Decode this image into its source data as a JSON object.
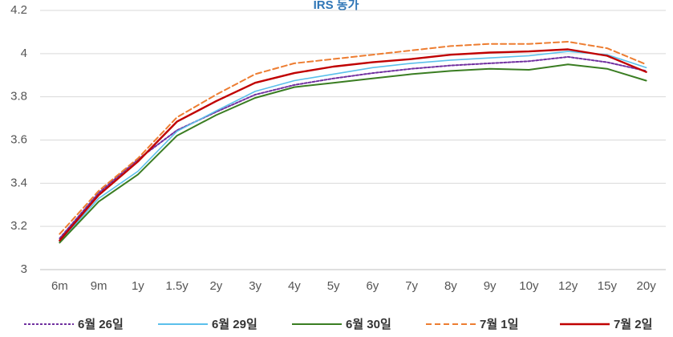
{
  "chart_data": {
    "type": "line",
    "title": "IRS 동가",
    "xlabel": "",
    "ylabel": "",
    "categories": [
      "6m",
      "9m",
      "1y",
      "1.5y",
      "2y",
      "3y",
      "4y",
      "5y",
      "6y",
      "7y",
      "8y",
      "9y",
      "10y",
      "12y",
      "15y",
      "20y"
    ],
    "ylim": [
      3,
      4.2
    ],
    "yticks": [
      "3",
      "3.2",
      "3.4",
      "3.6",
      "3.8",
      "4",
      "4.2"
    ],
    "grid": true,
    "legend_position": "bottom",
    "series": [
      {
        "name": "6월 26일",
        "color": "#7030A0",
        "dash": "dotted",
        "values": [
          3.145,
          3.355,
          3.51,
          3.645,
          3.73,
          3.81,
          3.855,
          3.885,
          3.91,
          3.93,
          3.945,
          3.955,
          3.965,
          3.985,
          3.96,
          3.92
        ]
      },
      {
        "name": "6월 29일",
        "color": "#5BC0EB",
        "dash": "solid",
        "values": [
          3.13,
          3.33,
          3.455,
          3.64,
          3.735,
          3.825,
          3.875,
          3.905,
          3.935,
          3.955,
          3.97,
          3.98,
          3.99,
          4.01,
          3.995,
          3.935
        ]
      },
      {
        "name": "6월 30일",
        "color": "#3A7D22",
        "dash": "solid",
        "values": [
          3.125,
          3.315,
          3.44,
          3.62,
          3.715,
          3.795,
          3.845,
          3.865,
          3.885,
          3.905,
          3.92,
          3.93,
          3.925,
          3.95,
          3.93,
          3.875
        ]
      },
      {
        "name": "7월 1일",
        "color": "#ED7D31",
        "dash": "dashed",
        "values": [
          3.165,
          3.365,
          3.515,
          3.705,
          3.81,
          3.905,
          3.955,
          3.975,
          3.995,
          4.015,
          4.035,
          4.045,
          4.045,
          4.055,
          4.025,
          3.95
        ]
      },
      {
        "name": "7월 2일",
        "color": "#C00000",
        "dash": "solid",
        "values": [
          3.135,
          3.345,
          3.5,
          3.685,
          3.78,
          3.865,
          3.91,
          3.94,
          3.96,
          3.975,
          3.995,
          4.005,
          4.01,
          4.02,
          3.99,
          3.915
        ]
      }
    ]
  }
}
